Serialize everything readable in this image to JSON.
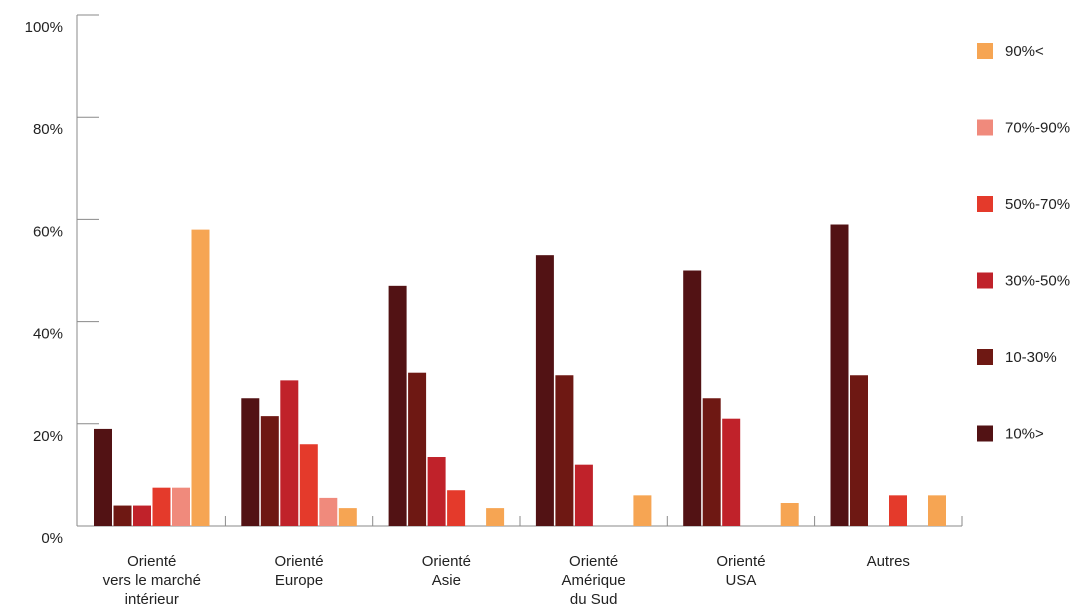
{
  "chart_data": {
    "type": "bar",
    "title": "",
    "xlabel": "",
    "ylabel": "",
    "ylim": [
      0,
      100
    ],
    "yticks": [
      "0%",
      "20%",
      "40%",
      "60%",
      "80%",
      "100%"
    ],
    "categories": [
      [
        "Orienté",
        "vers le marché",
        "intérieur"
      ],
      [
        "Orienté",
        "Europe"
      ],
      [
        "Orienté",
        "Asie"
      ],
      [
        "Orienté",
        "Amérique",
        "du Sud"
      ],
      [
        "Orienté",
        "USA"
      ],
      [
        "Autres"
      ]
    ],
    "series": [
      {
        "name": "10%>",
        "color": "#521214",
        "values": [
          19,
          25,
          47,
          53,
          50,
          59
        ]
      },
      {
        "name": "10-30%",
        "color": "#6e1813",
        "values": [
          4,
          21.5,
          30,
          29.5,
          25,
          29.5
        ]
      },
      {
        "name": "30%-50%",
        "color": "#c0222a",
        "values": [
          4,
          28.5,
          13.5,
          12,
          21,
          0
        ]
      },
      {
        "name": "50%-70%",
        "color": "#e43a2b",
        "values": [
          7.5,
          16,
          7,
          0,
          0,
          6
        ]
      },
      {
        "name": "70%-90%",
        "color": "#f08a7c",
        "values": [
          7.5,
          5.5,
          0,
          0,
          0,
          0
        ]
      },
      {
        "name": "90%<",
        "color": "#f6a553",
        "values": [
          58,
          3.5,
          3.5,
          6,
          4.5,
          6
        ]
      }
    ],
    "grid": false,
    "legend_position": "right"
  }
}
